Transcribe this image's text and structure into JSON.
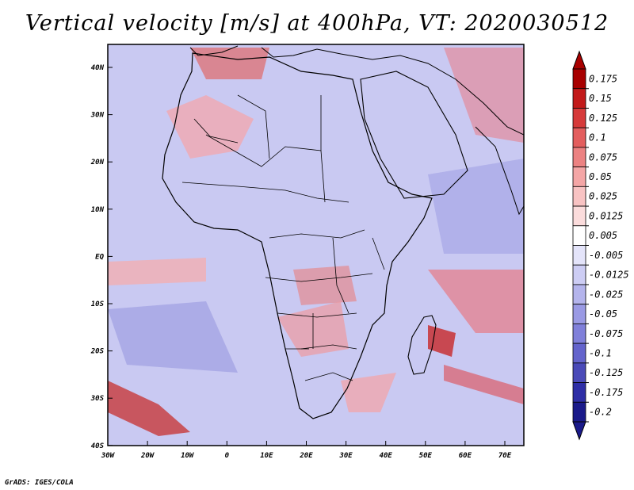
{
  "title": "Vertical velocity [m/s] at 400hPa, VT: 2020030512",
  "credit": "GrADS: IGES/COLA",
  "map": {
    "lat_ticks": [
      "40N",
      "30N",
      "20N",
      "10N",
      "EQ",
      "10S",
      "20S",
      "30S",
      "40S"
    ],
    "lon_ticks": [
      "30W",
      "20W",
      "10W",
      "0",
      "10E",
      "20E",
      "30E",
      "40E",
      "50E",
      "60E",
      "70E"
    ],
    "lon_range": [
      -30,
      75
    ],
    "lat_range": [
      -40,
      45
    ],
    "base_color": "#c9c9f2"
  },
  "colorbar": {
    "labels": [
      "0.175",
      "0.15",
      "0.125",
      "0.1",
      "0.075",
      "0.05",
      "0.025",
      "0.0125",
      "0.005",
      "-0.005",
      "-0.0125",
      "-0.025",
      "-0.05",
      "-0.075",
      "-0.1",
      "-0.125",
      "-0.175",
      "-0.2"
    ],
    "colors": [
      "#a80000",
      "#c21a1a",
      "#d63a3a",
      "#e35e5e",
      "#ec8282",
      "#f4a6a6",
      "#f8c3c3",
      "#fbdcdc",
      "#ffffff",
      "#e4e4fa",
      "#cdcdf4",
      "#b4b4ec",
      "#9a9ae4",
      "#8080da",
      "#6464cc",
      "#4a4ab8",
      "#2e2ea6",
      "#1a1a8a"
    ]
  }
}
